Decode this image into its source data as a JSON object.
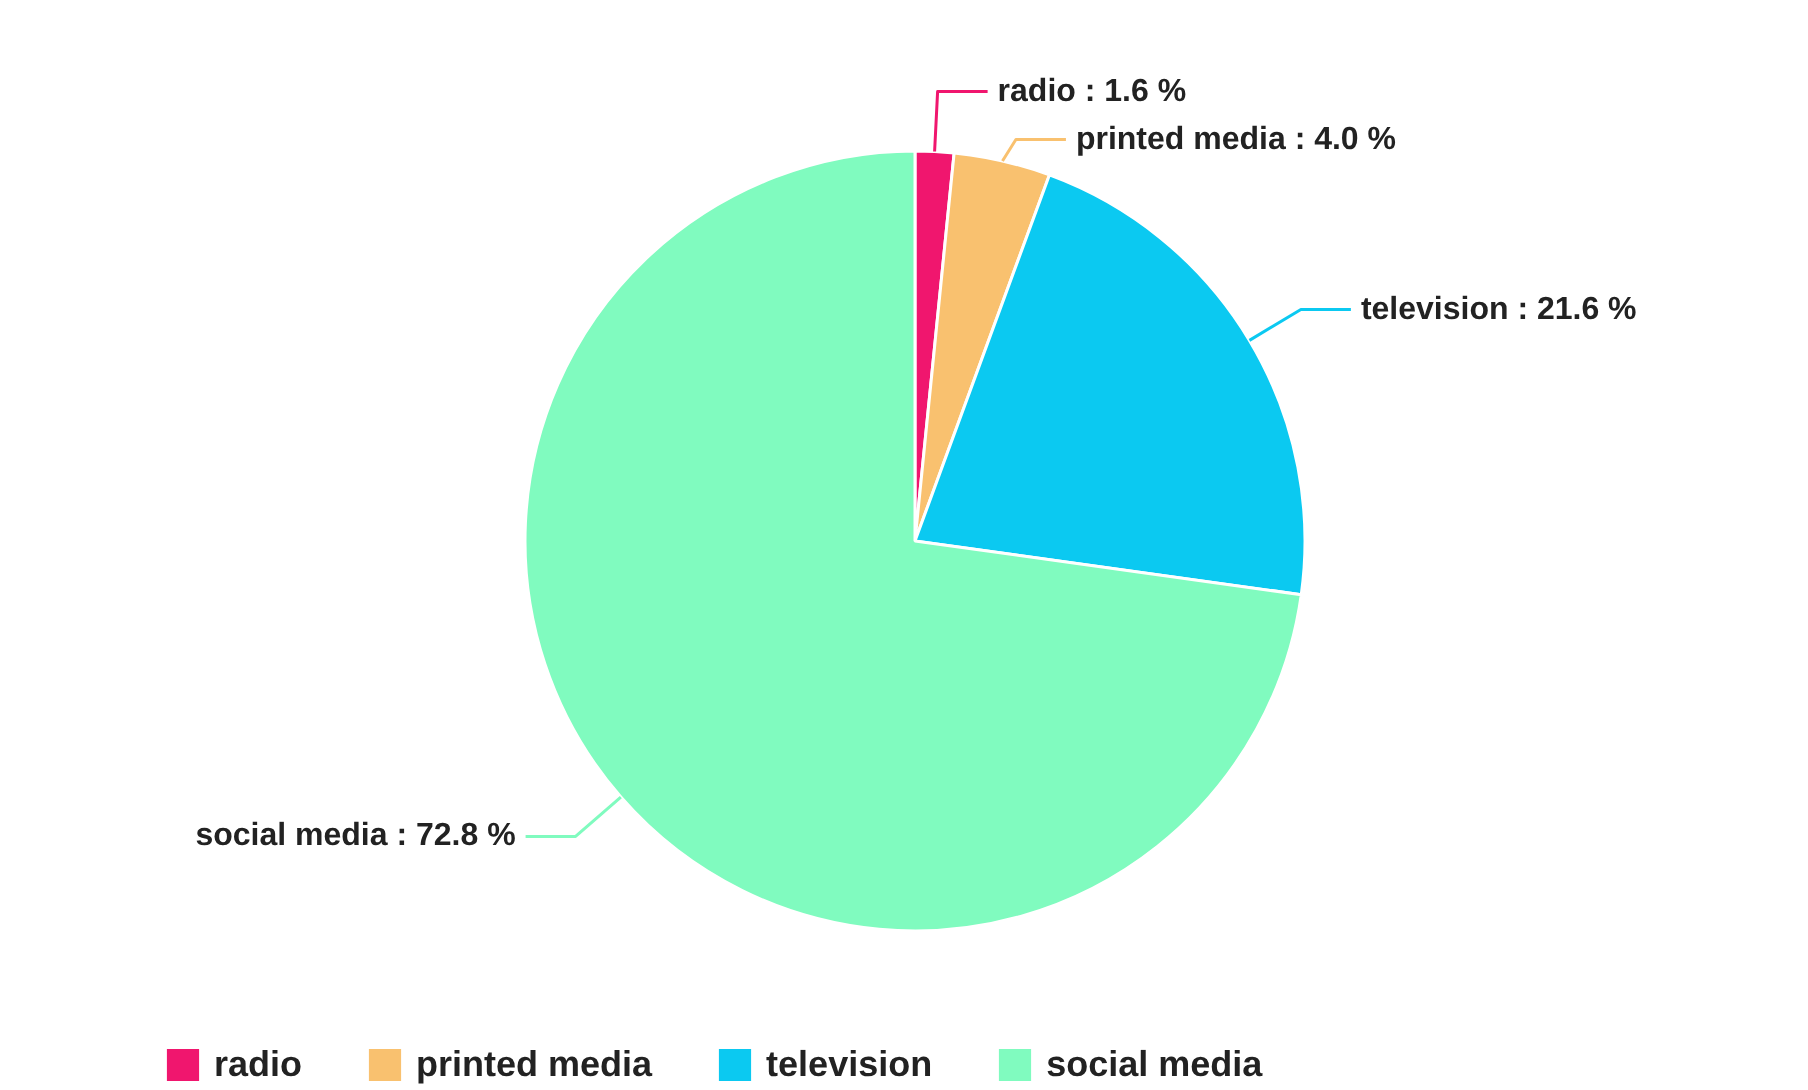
{
  "chart_data": {
    "type": "pie",
    "categories": [
      "radio",
      "printed media",
      "television",
      "social media"
    ],
    "values": [
      1.6,
      4.0,
      21.6,
      72.8
    ],
    "colors": [
      "#f0166e",
      "#f9c16f",
      "#0bc9f1",
      "#80fbbf"
    ],
    "value_labels": [
      "radio : 1.6 %",
      "printed media : 4.0 %",
      "television : 21.6 %",
      "social media : 72.8 %"
    ],
    "legend": "bottom"
  }
}
